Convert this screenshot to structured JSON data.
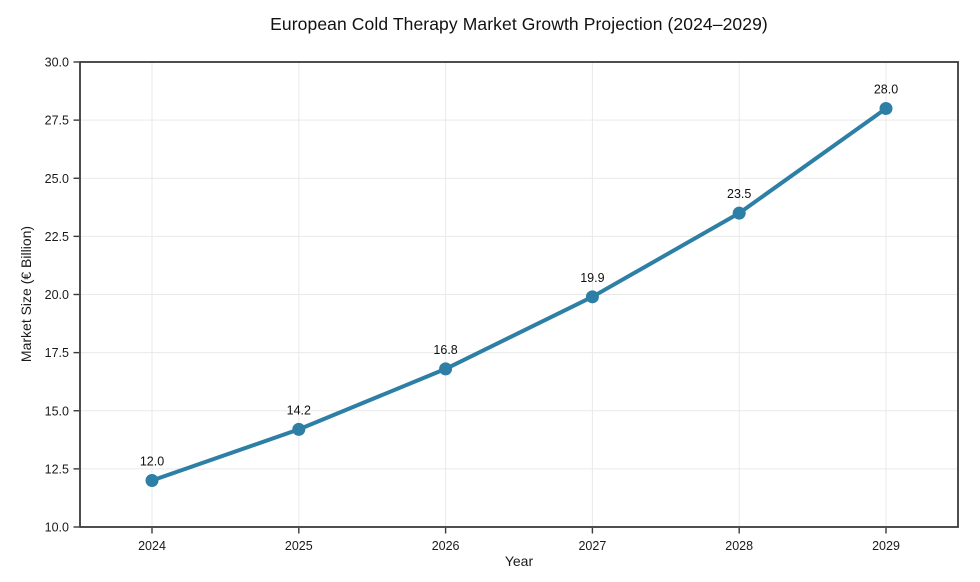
{
  "figure": {
    "background": "#ffffff"
  },
  "chart_data": {
    "type": "line",
    "title": "European Cold Therapy Market Growth Projection (2024–2029)",
    "xlabel": "Year",
    "ylabel": "Market Size (€ Billion)",
    "categories": [
      "2024",
      "2025",
      "2026",
      "2027",
      "2028",
      "2029"
    ],
    "series": [
      {
        "name": "Market Size",
        "values": [
          12.0,
          14.2,
          16.8,
          19.9,
          23.5,
          28.0
        ]
      }
    ],
    "point_labels": [
      "12.0",
      "14.2",
      "16.8",
      "19.9",
      "23.5",
      "28.0"
    ],
    "ylim": [
      10.0,
      30.0
    ],
    "yticks": [
      10.0,
      12.5,
      15.0,
      17.5,
      20.0,
      22.5,
      25.0,
      27.5,
      30.0
    ],
    "ytick_labels": [
      "10.0",
      "12.5",
      "15.0",
      "17.5",
      "20.0",
      "22.5",
      "25.0",
      "27.5",
      "30.0"
    ],
    "grid": true,
    "legend": "none",
    "colors": {
      "line": "#2d7fa5",
      "marker": "#2d7fa5",
      "grid": "#e9e9e9",
      "spine": "#3a3a3a",
      "tick_text": "#1a1a1a",
      "annotation_text": "#111111"
    }
  }
}
